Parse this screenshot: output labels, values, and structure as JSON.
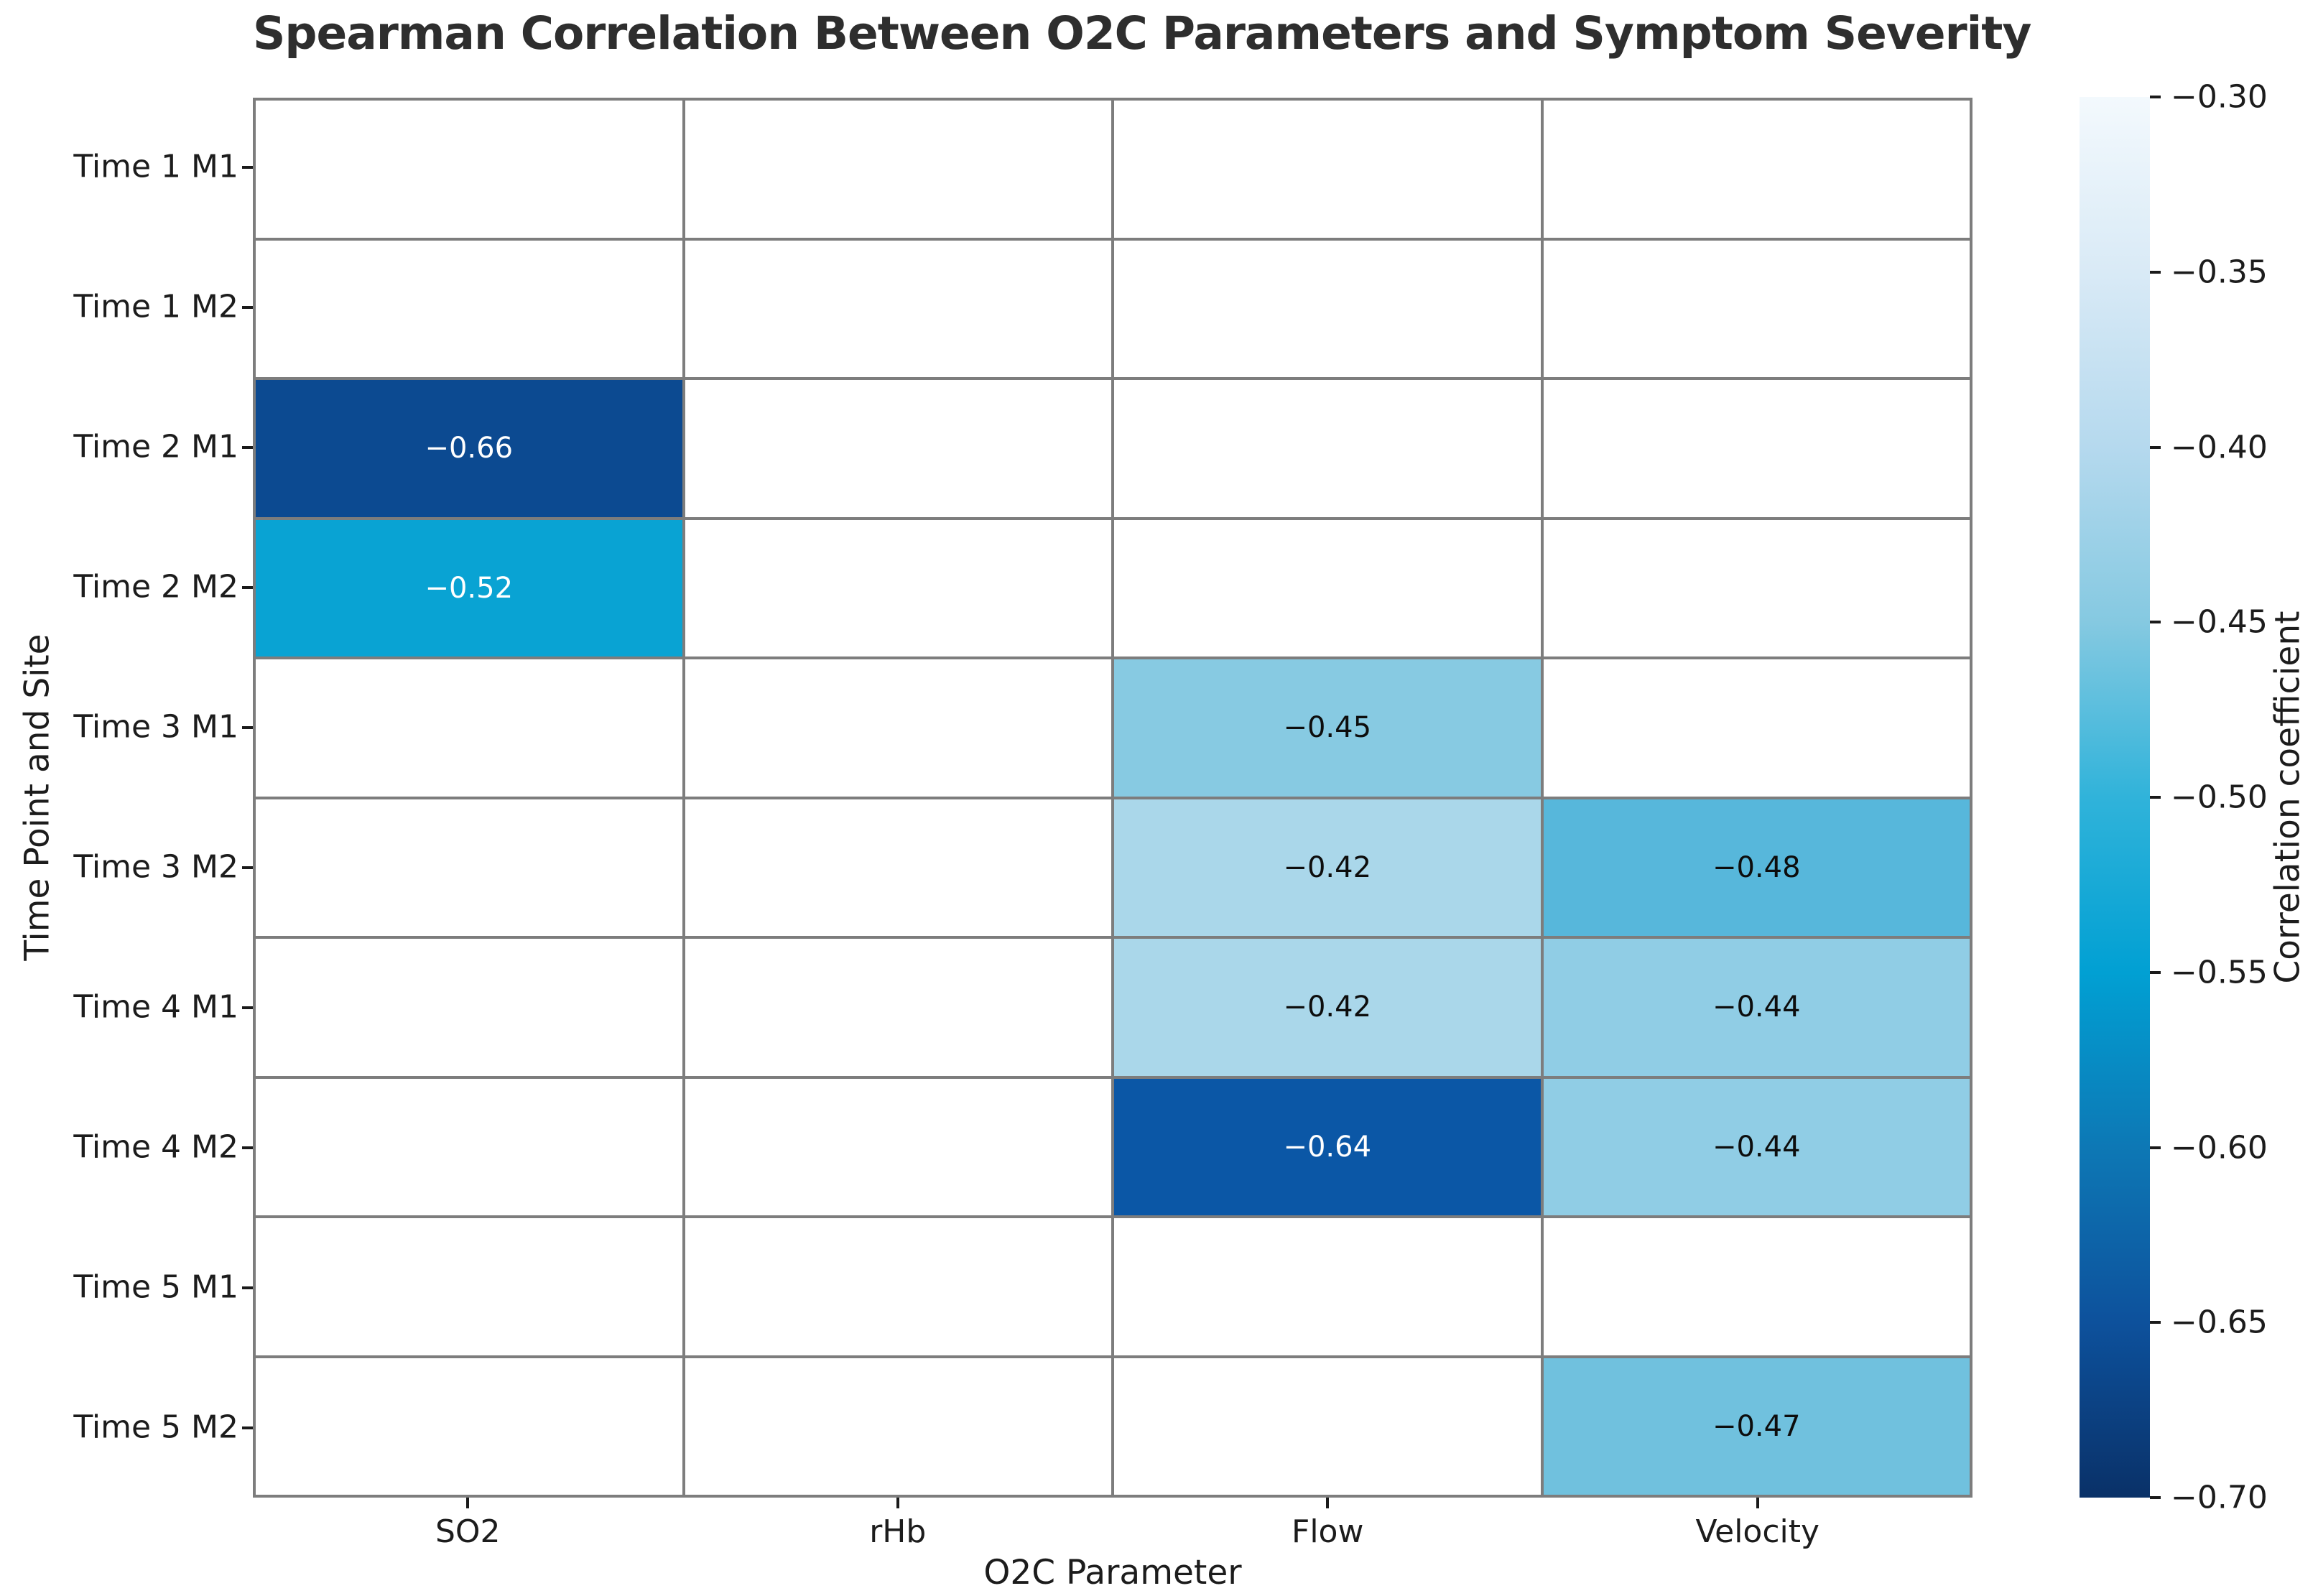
{
  "chart_data": {
    "type": "heatmap",
    "title": "Spearman Correlation Between O2C Parameters and Symptom Severity",
    "xlabel": "O2C Parameter",
    "ylabel": "Time Point and Site",
    "colorbar_label": "Correlation coefficient",
    "columns": [
      "SO2",
      "rHb",
      "Flow",
      "Velocity"
    ],
    "rows": [
      "Time 1 M1",
      "Time 1 M2",
      "Time 2 M1",
      "Time 2 M2",
      "Time 3 M1",
      "Time 3 M2",
      "Time 4 M1",
      "Time 4 M2",
      "Time 5 M1",
      "Time 5 M2"
    ],
    "values": [
      [
        null,
        null,
        null,
        null
      ],
      [
        null,
        null,
        null,
        null
      ],
      [
        -0.66,
        null,
        null,
        null
      ],
      [
        -0.52,
        null,
        null,
        null
      ],
      [
        null,
        null,
        -0.45,
        null
      ],
      [
        null,
        null,
        -0.42,
        -0.48
      ],
      [
        null,
        null,
        -0.42,
        -0.44
      ],
      [
        null,
        null,
        -0.64,
        -0.44
      ],
      [
        null,
        null,
        null,
        null
      ],
      [
        null,
        null,
        null,
        -0.47
      ]
    ],
    "annotations": [
      {
        "row": 2,
        "col": 0,
        "label": "−0.66",
        "bg": "#0c4a91",
        "fg": "#ffffff"
      },
      {
        "row": 3,
        "col": 0,
        "label": "−0.52",
        "bg": "#09a3d3",
        "fg": "#ffffff"
      },
      {
        "row": 4,
        "col": 2,
        "label": "−0.45",
        "bg": "#87cae2",
        "fg": "#0d0d0d"
      },
      {
        "row": 5,
        "col": 2,
        "label": "−0.42",
        "bg": "#aad7ea",
        "fg": "#0d0d0d"
      },
      {
        "row": 5,
        "col": 3,
        "label": "−0.48",
        "bg": "#57b7db",
        "fg": "#0d0d0d"
      },
      {
        "row": 6,
        "col": 2,
        "label": "−0.42",
        "bg": "#aad7ea",
        "fg": "#0d0d0d"
      },
      {
        "row": 6,
        "col": 3,
        "label": "−0.44",
        "bg": "#90cde5",
        "fg": "#0d0d0d"
      },
      {
        "row": 7,
        "col": 2,
        "label": "−0.64",
        "bg": "#0b57a6",
        "fg": "#ffffff"
      },
      {
        "row": 7,
        "col": 3,
        "label": "−0.44",
        "bg": "#90cde5",
        "fg": "#0d0d0d"
      },
      {
        "row": 9,
        "col": 3,
        "label": "−0.47",
        "bg": "#70c1de",
        "fg": "#0d0d0d"
      }
    ],
    "empty_cell_color": "#ffffff",
    "grid_line_color": "#7d7d7d",
    "colorbar": {
      "min": -0.7,
      "max": -0.3,
      "tick_labels": [
        "−0.30",
        "−0.35",
        "−0.40",
        "−0.45",
        "−0.50",
        "−0.55",
        "−0.60",
        "−0.65",
        "−0.70"
      ],
      "gradient_stops": [
        {
          "pos": 0,
          "color": "#f3f9fd"
        },
        {
          "pos": 12.5,
          "color": "#d9eaf6"
        },
        {
          "pos": 25,
          "color": "#b5d9ee"
        },
        {
          "pos": 37.5,
          "color": "#85c9e1"
        },
        {
          "pos": 50,
          "color": "#30b3da"
        },
        {
          "pos": 62.5,
          "color": "#01a0d3"
        },
        {
          "pos": 75,
          "color": "#0d78b5"
        },
        {
          "pos": 87.5,
          "color": "#0d519c"
        },
        {
          "pos": 100,
          "color": "#0a3168"
        }
      ]
    }
  }
}
